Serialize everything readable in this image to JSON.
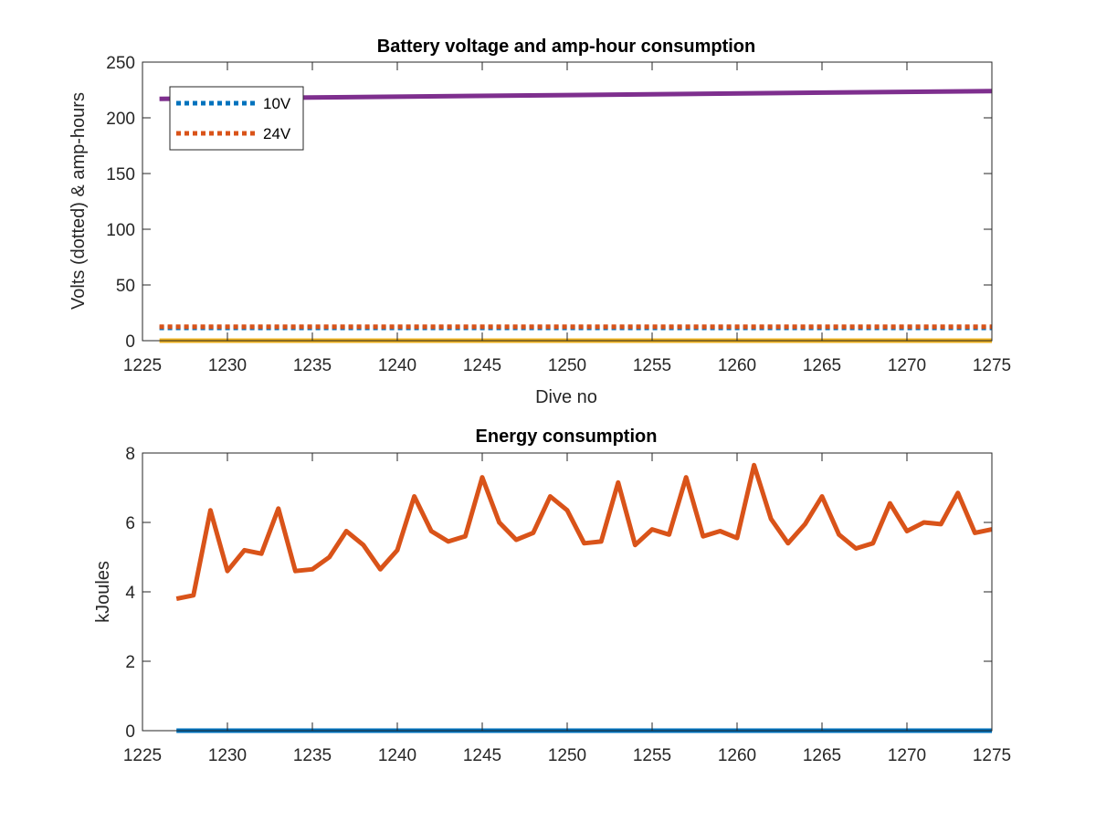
{
  "chart_data": [
    {
      "type": "line",
      "title": "Battery voltage and amp-hour consumption",
      "xlabel": "Dive no",
      "ylabel": "Volts (dotted) & amp-hours",
      "xlim": [
        1225,
        1275
      ],
      "ylim": [
        0,
        250
      ],
      "xticks": [
        1225,
        1230,
        1235,
        1240,
        1245,
        1250,
        1255,
        1260,
        1265,
        1270,
        1275
      ],
      "yticks": [
        0,
        50,
        100,
        150,
        200,
        250
      ],
      "grid": false,
      "legend_position": "top-left",
      "series": [
        {
          "name": "10V",
          "style": "dotted",
          "color": "#0072BD",
          "x": [
            1226,
            1275
          ],
          "y": [
            11.5,
            11.5
          ]
        },
        {
          "name": "24V",
          "style": "dotted",
          "color": "#D95319",
          "x": [
            1226,
            1275
          ],
          "y": [
            12.5,
            12.5
          ]
        },
        {
          "style": "solid",
          "color": "#EDB120",
          "x": [
            1226,
            1275
          ],
          "y": [
            0,
            0
          ]
        },
        {
          "style": "solid",
          "color": "#7E2F8E",
          "x": [
            1226,
            1275
          ],
          "y": [
            217,
            224
          ]
        }
      ]
    },
    {
      "type": "line",
      "title": "Energy consumption",
      "xlabel": "",
      "ylabel": "kJoules",
      "xlim": [
        1225,
        1275
      ],
      "ylim": [
        0,
        8
      ],
      "xticks": [
        1225,
        1230,
        1235,
        1240,
        1245,
        1250,
        1255,
        1260,
        1265,
        1270,
        1275
      ],
      "yticks": [
        0,
        2,
        4,
        6,
        8
      ],
      "grid": false,
      "series": [
        {
          "style": "solid",
          "color": "#0072BD",
          "x": [
            1227,
            1275
          ],
          "y": [
            0,
            0
          ]
        },
        {
          "style": "solid",
          "color": "#D95319",
          "x": [
            1227,
            1228,
            1229,
            1230,
            1231,
            1232,
            1233,
            1234,
            1235,
            1236,
            1237,
            1238,
            1239,
            1240,
            1241,
            1242,
            1243,
            1244,
            1245,
            1246,
            1247,
            1248,
            1249,
            1250,
            1251,
            1252,
            1253,
            1254,
            1255,
            1256,
            1257,
            1258,
            1259,
            1260,
            1261,
            1262,
            1263,
            1264,
            1265,
            1266,
            1267,
            1268,
            1269,
            1270,
            1271,
            1272,
            1273,
            1274,
            1275
          ],
          "y": [
            3.8,
            3.9,
            6.35,
            4.6,
            5.2,
            5.1,
            6.4,
            4.6,
            4.65,
            5.0,
            5.75,
            5.35,
            4.65,
            5.2,
            6.75,
            5.75,
            5.45,
            5.6,
            7.3,
            6.0,
            5.5,
            5.7,
            6.75,
            6.35,
            5.4,
            5.45,
            7.15,
            5.35,
            5.8,
            5.65,
            7.3,
            5.6,
            5.75,
            5.55,
            7.65,
            6.1,
            5.4,
            5.95,
            6.75,
            5.65,
            5.25,
            5.4,
            6.55,
            5.75,
            6.0,
            5.95,
            6.85,
            5.7,
            5.8
          ]
        }
      ]
    }
  ]
}
